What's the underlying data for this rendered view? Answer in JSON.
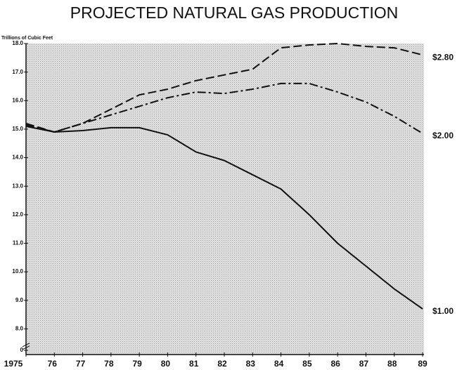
{
  "chart_data": {
    "type": "line",
    "title": "PROJECTED NATURAL GAS PRODUCTION",
    "y_label": "Trillions of Cubic Feet",
    "categories": [
      "1975",
      "76",
      "77",
      "78",
      "79",
      "80",
      "81",
      "82",
      "83",
      "84",
      "85",
      "86",
      "87",
      "88",
      "89"
    ],
    "series": [
      {
        "name": "$2.80",
        "color": "#111111",
        "line_style": "dashed",
        "values": [
          15.2,
          14.9,
          15.2,
          15.7,
          16.2,
          16.4,
          16.7,
          16.9,
          17.1,
          17.85,
          17.95,
          18.0,
          17.9,
          17.85,
          17.6
        ]
      },
      {
        "name": "$2.00",
        "color": "#111111",
        "line_style": "dashdot",
        "values": [
          15.15,
          14.9,
          15.2,
          15.5,
          15.8,
          16.1,
          16.3,
          16.25,
          16.4,
          16.6,
          16.6,
          16.3,
          15.95,
          15.45,
          14.85
        ]
      },
      {
        "name": "$1.00",
        "color": "#111111",
        "line_style": "solid",
        "values": [
          15.1,
          14.9,
          14.95,
          15.05,
          15.05,
          14.8,
          14.2,
          13.9,
          13.4,
          12.9,
          12.0,
          11.0,
          10.2,
          9.4,
          8.7
        ]
      }
    ],
    "ylim": [
      7.1,
      18
    ],
    "axis_break": true,
    "yticks": [
      {
        "value": 0,
        "label": "0"
      },
      {
        "value": 8,
        "label": "8.0"
      },
      {
        "value": 9,
        "label": "9.0"
      },
      {
        "value": 10,
        "label": "10.0"
      },
      {
        "value": 11,
        "label": "11.0"
      },
      {
        "value": 12,
        "label": "12.0"
      },
      {
        "value": 13,
        "label": "13.0"
      },
      {
        "value": 14,
        "label": "14.0"
      },
      {
        "value": 15,
        "label": "15.0"
      },
      {
        "value": 16,
        "label": "16.0"
      },
      {
        "value": 17,
        "label": "17.0"
      },
      {
        "value": 18,
        "label": "18.0"
      }
    ]
  }
}
